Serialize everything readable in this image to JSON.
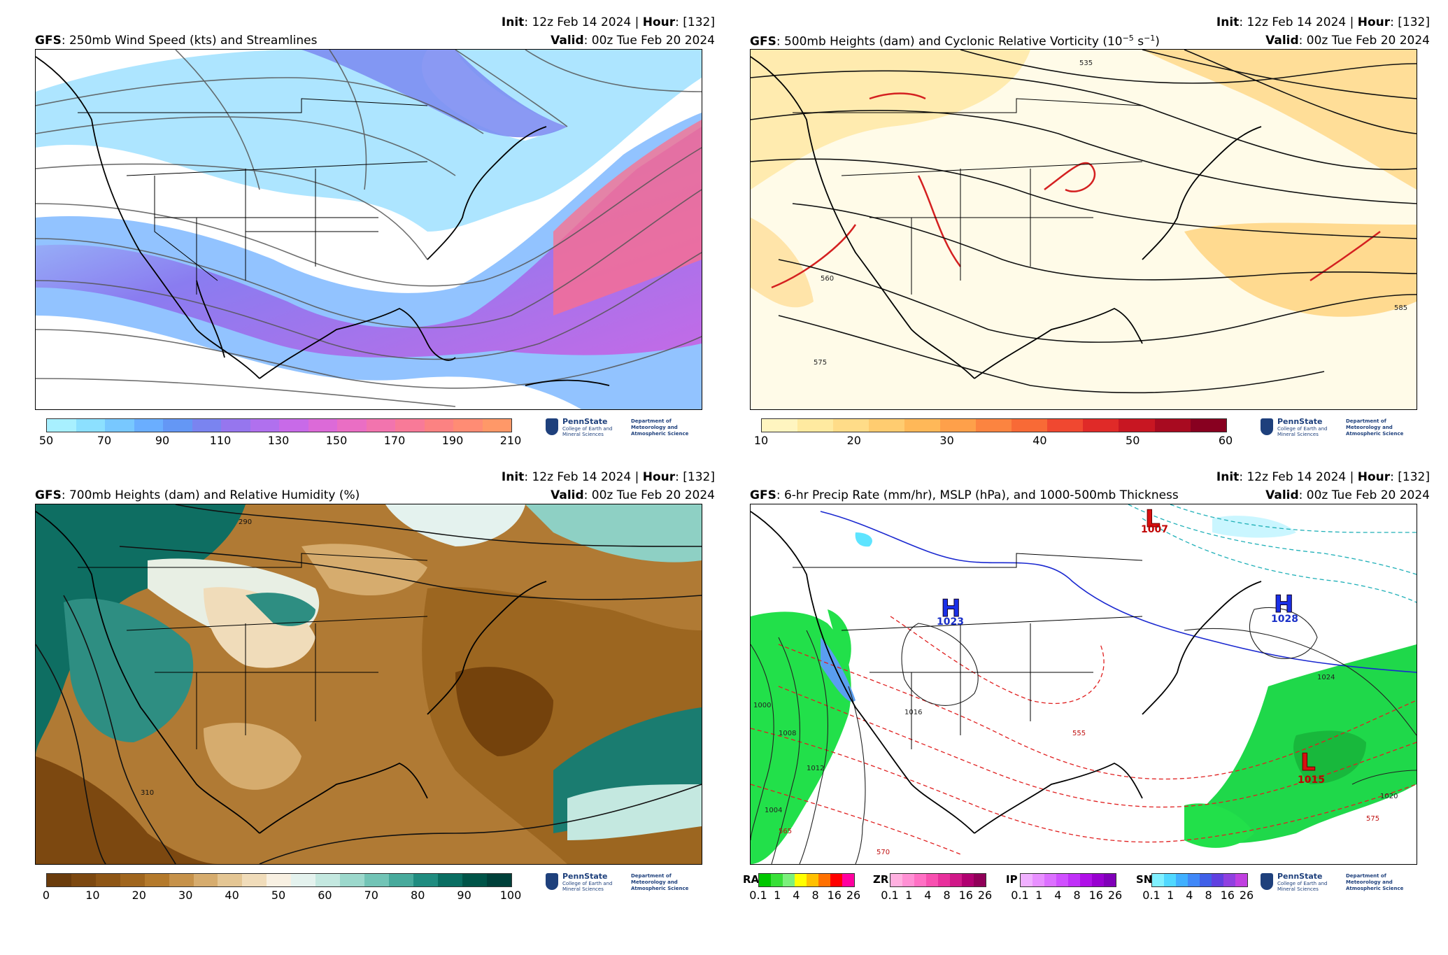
{
  "panels": [
    {
      "model": "GFS",
      "title": ": 250mb Wind Speed (kts) and Streamlines",
      "init_label": "Init",
      "init_value": ": 12z Feb 14 2024 | ",
      "hour_label": "Hour",
      "hour_value": ": [132]",
      "valid_label": "Valid",
      "valid_value": ": 00z Tue Feb 20 2024",
      "colorbar": {
        "colors": [
          "#a8f0ff",
          "#8ce0ff",
          "#78c8ff",
          "#6aaeff",
          "#6497f5",
          "#7a84f0",
          "#9676ee",
          "#b070ee",
          "#c86ae8",
          "#dc6ad8",
          "#ea6ec4",
          "#f274ae",
          "#f87a98",
          "#fc8282",
          "#ff8c74",
          "#ff9868"
        ],
        "tick_labels": [
          "50",
          "70",
          "90",
          "110",
          "130",
          "150",
          "170",
          "190",
          "210"
        ]
      }
    },
    {
      "model": "GFS",
      "title": ": 500mb Heights (dam) and Cyclonic Relative Vorticity (10",
      "title_sup": "−5",
      "title_tail": " s",
      "title_sup2": "−1",
      "title_end": ")",
      "init_label": "Init",
      "init_value": ": 12z Feb 14 2024 | ",
      "hour_label": "Hour",
      "hour_value": ": [132]",
      "valid_label": "Valid",
      "valid_value": ": 00z Tue Feb 20 2024",
      "colorbar": {
        "colors": [
          "#fff5c0",
          "#ffeaa0",
          "#ffdc88",
          "#ffcc70",
          "#ffb858",
          "#fea04a",
          "#fc8440",
          "#f86a36",
          "#f04830",
          "#e02a28",
          "#c81622",
          "#a80a20",
          "#880020"
        ],
        "tick_labels": [
          "10",
          "20",
          "30",
          "40",
          "50",
          "60"
        ]
      },
      "contour_labels": [
        "535",
        "560",
        "575",
        "585"
      ]
    },
    {
      "model": "GFS",
      "title": ": 700mb Heights (dam) and Relative Humidity (%)",
      "init_label": "Init",
      "init_value": ": 12z Feb 14 2024 | ",
      "hour_label": "Hour",
      "hour_value": ": [132]",
      "valid_label": "Valid",
      "valid_value": ": 00z Tue Feb 20 2024",
      "colorbar": {
        "colors": [
          "#6a3c0c",
          "#7c4810",
          "#8e5616",
          "#a0661e",
          "#b47a2c",
          "#c6924a",
          "#d6ac6e",
          "#e4c694",
          "#f0dcba",
          "#f8f0e2",
          "#e4f2ee",
          "#c4e8e0",
          "#9cd8cc",
          "#72c4b6",
          "#48aa9c",
          "#208c80",
          "#0a6e62",
          "#005448",
          "#00403a"
        ],
        "tick_labels": [
          "0",
          "10",
          "20",
          "30",
          "40",
          "50",
          "60",
          "70",
          "80",
          "90",
          "100"
        ]
      },
      "contour_labels": [
        "290",
        "310"
      ]
    },
    {
      "model": "GFS",
      "title": ": 6-hr Precip Rate (mm/hr), MSLP (hPa), and 1000-500mb Thickness",
      "init_label": "Init",
      "init_value": ": 12z Feb 14 2024 | ",
      "hour_label": "Hour",
      "hour_value": ": [132]",
      "valid_label": "Valid",
      "valid_value": ": 00z Tue Feb 20 2024",
      "pressure_centers": [
        {
          "type": "L",
          "value": "1007"
        },
        {
          "type": "H",
          "value": "1023"
        },
        {
          "type": "H",
          "value": "1028"
        },
        {
          "type": "L",
          "value": "1015"
        }
      ],
      "isobar_labels": [
        "1008",
        "1012",
        "1016",
        "1020",
        "1024",
        "1004",
        "1000"
      ],
      "thickness_labels": [
        "555",
        "565",
        "570",
        "575"
      ],
      "precip_bars": [
        {
          "label": "RA",
          "colors": [
            "#00c800",
            "#38e038",
            "#7cf07c",
            "#ffff00",
            "#ffc000",
            "#ff7000",
            "#ff0000",
            "#ff00a0"
          ]
        },
        {
          "label": "ZR",
          "colors": [
            "#ffb0e0",
            "#ff90d4",
            "#ff70c4",
            "#f850b0",
            "#e8309c",
            "#d01888",
            "#b00070",
            "#900058"
          ]
        },
        {
          "label": "IP",
          "colors": [
            "#f0b0ff",
            "#e890ff",
            "#dc70ff",
            "#d050ff",
            "#c030f8",
            "#b010e8",
            "#9800d0",
            "#8000b8"
          ]
        },
        {
          "label": "SN",
          "colors": [
            "#80f0ff",
            "#50d8ff",
            "#40b0ff",
            "#4088f8",
            "#4060e8",
            "#6040e0",
            "#9040e0",
            "#c040e0"
          ]
        }
      ],
      "precip_ticks": [
        "0.1",
        "1",
        "4",
        "8",
        "16",
        "26"
      ]
    }
  ],
  "logo": {
    "name": "PennState",
    "college": "College of Earth and Mineral Sciences",
    "dept_1": "Department of",
    "dept_2": "Meteorology and",
    "dept_3": "Atmospheric Science"
  }
}
